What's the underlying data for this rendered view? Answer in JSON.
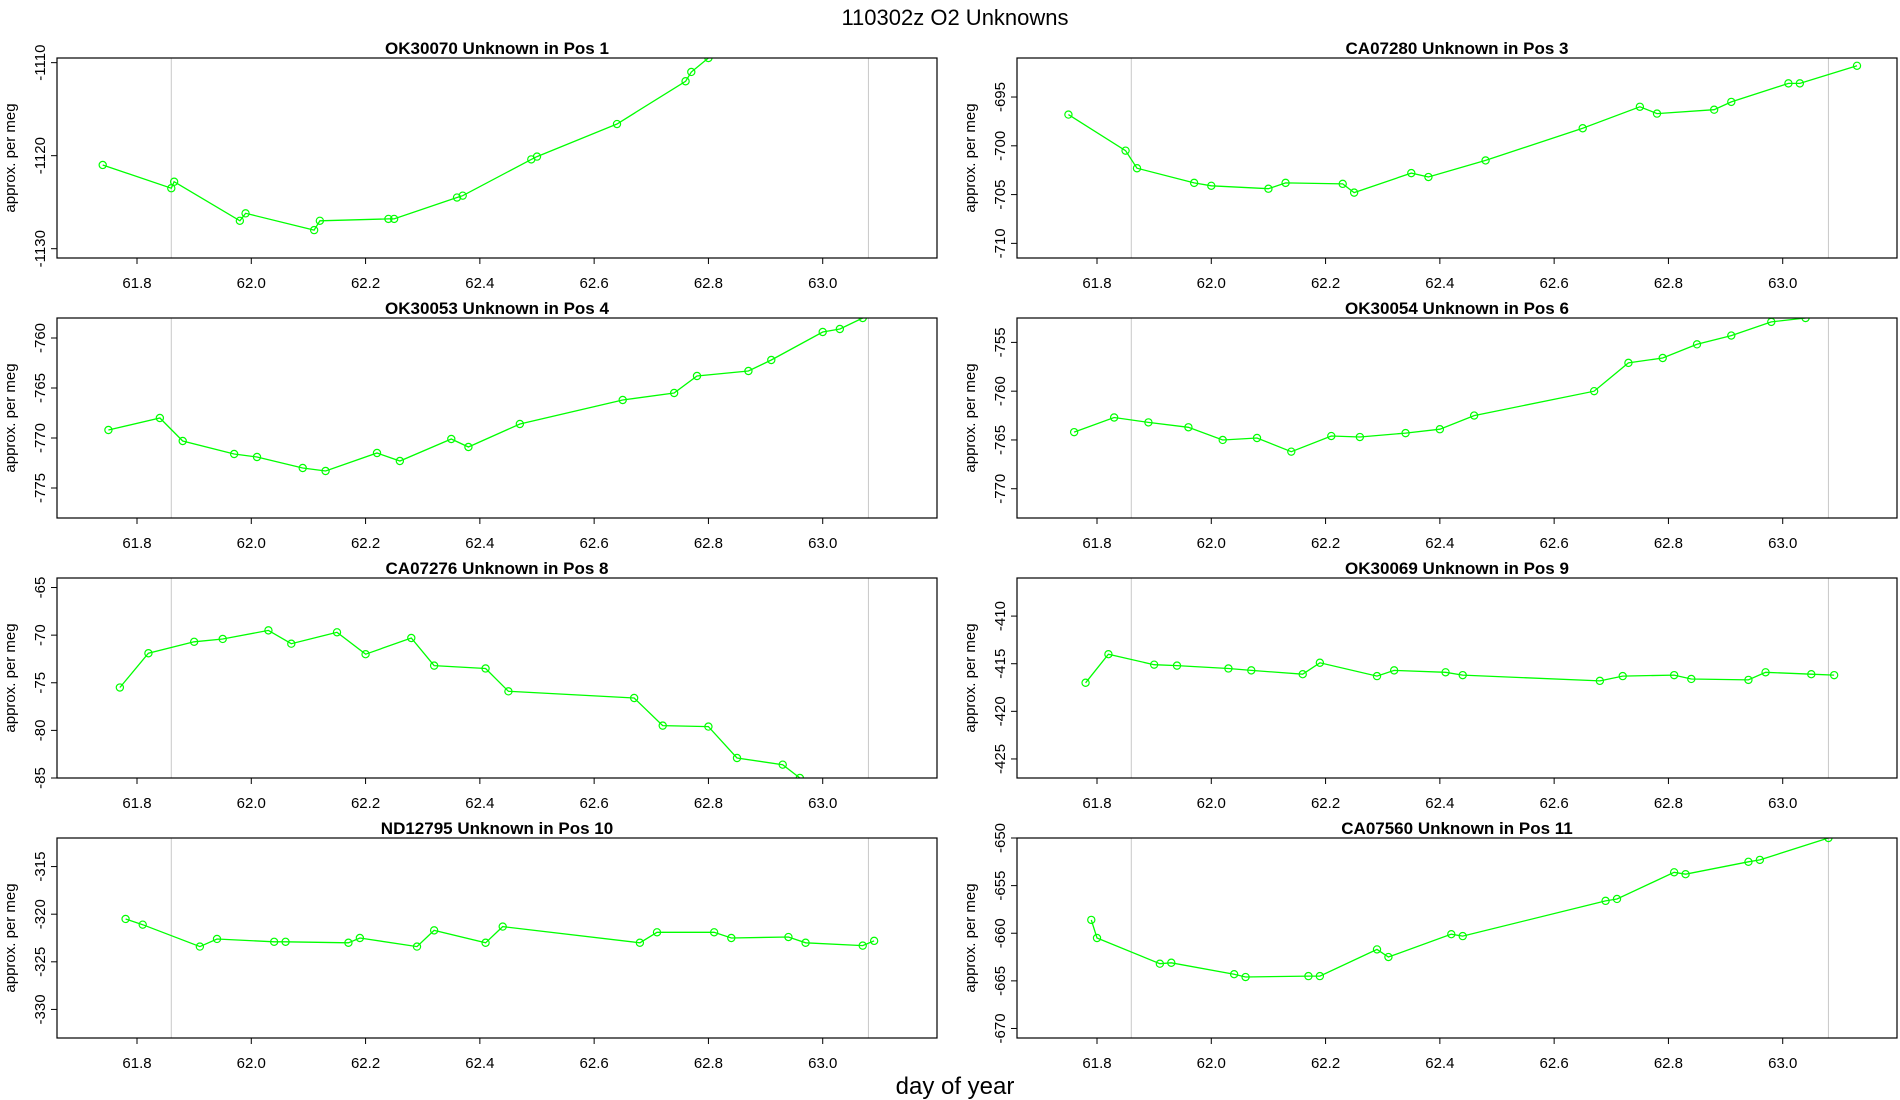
{
  "figure_title": "110302z  O2 Unknowns",
  "x_axis_label": "day of year",
  "y_axis_label": "approx. per meg",
  "reference_lines_x": [
    61.86,
    63.08
  ],
  "series_color": "#00ff00",
  "chart_data": [
    {
      "type": "line",
      "title": "OK30070    Unknown in Pos 1",
      "xlim": [
        61.66,
        63.2
      ],
      "ylim": [
        -1131,
        -1109.5
      ],
      "xticks": [
        "61.8",
        "62.0",
        "62.2",
        "62.4",
        "62.6",
        "62.8",
        "63.0"
      ],
      "yticks": [
        "-1110",
        "-1120",
        "-1130"
      ],
      "x": [
        61.74,
        61.86,
        61.865,
        61.98,
        61.99,
        62.11,
        62.12,
        62.24,
        62.25,
        62.36,
        62.37,
        62.49,
        62.5,
        62.64,
        62.76,
        62.77,
        62.8
      ],
      "y": [
        -1121,
        -1123.5,
        -1122.8,
        -1127,
        -1126.2,
        -1128,
        -1127,
        -1126.8,
        -1126.8,
        -1124.5,
        -1124.3,
        -1120.4,
        -1120.1,
        -1116.6,
        -1112,
        -1111,
        -1109.5
      ]
    },
    {
      "type": "line",
      "title": "CA07280    Unknown in Pos 3",
      "xlim": [
        61.66,
        63.2
      ],
      "ylim": [
        -711.5,
        -691
      ],
      "xticks": [
        "61.8",
        "62.0",
        "62.2",
        "62.4",
        "62.6",
        "62.8",
        "63.0"
      ],
      "yticks": [
        "-695",
        "-700",
        "-705",
        "-710"
      ],
      "x": [
        61.75,
        61.85,
        61.87,
        61.97,
        62.0,
        62.1,
        62.13,
        62.23,
        62.25,
        62.35,
        62.38,
        62.48,
        62.65,
        62.75,
        62.78,
        62.88,
        62.91,
        63.01,
        63.03,
        63.13
      ],
      "y": [
        -696.8,
        -700.5,
        -702.3,
        -703.8,
        -704.1,
        -704.4,
        -703.8,
        -703.9,
        -704.8,
        -702.8,
        -703.2,
        -701.5,
        -698.2,
        -696,
        -696.7,
        -696.3,
        -695.5,
        -693.6,
        -693.6,
        -691.8
      ]
    },
    {
      "type": "line",
      "title": "OK30053    Unknown in Pos 4",
      "xlim": [
        61.66,
        63.2
      ],
      "ylim": [
        -778,
        -758
      ],
      "xticks": [
        "61.8",
        "62.0",
        "62.2",
        "62.4",
        "62.6",
        "62.8",
        "63.0"
      ],
      "yticks": [
        "-760",
        "-765",
        "-770",
        "-775"
      ],
      "x": [
        61.75,
        61.84,
        61.88,
        61.97,
        62.01,
        62.09,
        62.13,
        62.22,
        62.26,
        62.35,
        62.38,
        62.47,
        62.65,
        62.74,
        62.78,
        62.87,
        62.91,
        63.0,
        63.03,
        63.07
      ],
      "y": [
        -769.2,
        -768,
        -770.3,
        -771.6,
        -771.9,
        -773,
        -773.3,
        -771.5,
        -772.3,
        -770.1,
        -770.9,
        -768.6,
        -766.2,
        -765.5,
        -763.8,
        -763.3,
        -762.2,
        -759.4,
        -759.1,
        -758
      ]
    },
    {
      "type": "line",
      "title": "OK30054    Unknown in Pos 6",
      "xlim": [
        61.66,
        63.2
      ],
      "ylim": [
        -773,
        -752.5
      ],
      "xticks": [
        "61.8",
        "62.0",
        "62.2",
        "62.4",
        "62.6",
        "62.8",
        "63.0"
      ],
      "yticks": [
        "-755",
        "-760",
        "-765",
        "-770"
      ],
      "x": [
        61.76,
        61.83,
        61.89,
        61.96,
        62.02,
        62.08,
        62.14,
        62.21,
        62.26,
        62.34,
        62.4,
        62.46,
        62.67,
        62.73,
        62.79,
        62.85,
        62.91,
        62.98,
        63.04
      ],
      "y": [
        -764.2,
        -762.7,
        -763.2,
        -763.7,
        -765,
        -764.8,
        -766.2,
        -764.6,
        -764.7,
        -764.3,
        -763.9,
        -762.5,
        -760,
        -757.1,
        -756.6,
        -755.2,
        -754.3,
        -752.9,
        -752.5
      ]
    },
    {
      "type": "line",
      "title": "CA07276    Unknown in Pos 8",
      "xlim": [
        61.66,
        63.2
      ],
      "ylim": [
        -85,
        -64
      ],
      "xticks": [
        "61.8",
        "62.0",
        "62.2",
        "62.4",
        "62.6",
        "62.8",
        "63.0"
      ],
      "yticks": [
        "-65",
        "-70",
        "-75",
        "-80",
        "-85"
      ],
      "x": [
        61.77,
        61.82,
        61.9,
        61.95,
        62.03,
        62.07,
        62.15,
        62.2,
        62.28,
        62.32,
        62.41,
        62.45,
        62.67,
        62.72,
        62.8,
        62.85,
        62.93,
        62.96
      ],
      "y": [
        -75.5,
        -71.9,
        -70.7,
        -70.4,
        -69.5,
        -70.9,
        -69.7,
        -72,
        -70.3,
        -73.2,
        -73.5,
        -75.9,
        -76.6,
        -79.5,
        -79.6,
        -82.9,
        -83.6,
        -85
      ]
    },
    {
      "type": "line",
      "title": "OK30069    Unknown in Pos 9",
      "xlim": [
        61.66,
        63.2
      ],
      "ylim": [
        -427,
        -406
      ],
      "xticks": [
        "61.8",
        "62.0",
        "62.2",
        "62.4",
        "62.6",
        "62.8",
        "63.0"
      ],
      "yticks": [
        "-410",
        "-415",
        "-420",
        "-425"
      ],
      "x": [
        61.78,
        61.82,
        61.9,
        61.94,
        62.03,
        62.07,
        62.16,
        62.19,
        62.29,
        62.32,
        62.41,
        62.44,
        62.68,
        62.72,
        62.81,
        62.84,
        62.94,
        62.97,
        63.05,
        63.09
      ],
      "y": [
        -417,
        -414,
        -415.1,
        -415.2,
        -415.5,
        -415.7,
        -416.1,
        -414.9,
        -416.3,
        -415.7,
        -415.9,
        -416.2,
        -416.8,
        -416.3,
        -416.2,
        -416.6,
        -416.7,
        -415.9,
        -416.1,
        -416.2
      ]
    },
    {
      "type": "line",
      "title": "ND12795    Unknown in Pos 10",
      "xlim": [
        61.66,
        63.2
      ],
      "ylim": [
        -333,
        -312
      ],
      "xticks": [
        "61.8",
        "62.0",
        "62.2",
        "62.4",
        "62.6",
        "62.8",
        "63.0"
      ],
      "yticks": [
        "-315",
        "-320",
        "-325",
        "-330"
      ],
      "x": [
        61.78,
        61.81,
        61.91,
        61.94,
        62.04,
        62.06,
        62.17,
        62.19,
        62.29,
        62.32,
        62.41,
        62.44,
        62.68,
        62.71,
        62.81,
        62.84,
        62.94,
        62.97,
        63.07,
        63.09
      ],
      "y": [
        -320.5,
        -321.1,
        -323.4,
        -322.6,
        -322.9,
        -322.9,
        -323,
        -322.5,
        -323.4,
        -321.7,
        -323,
        -321.3,
        -323,
        -321.9,
        -321.9,
        -322.5,
        -322.4,
        -323,
        -323.3,
        -322.8
      ]
    },
    {
      "type": "line",
      "title": "CA07560    Unknown in Pos 11",
      "xlim": [
        61.66,
        63.2
      ],
      "ylim": [
        -671,
        -650
      ],
      "xticks": [
        "61.8",
        "62.0",
        "62.2",
        "62.4",
        "62.6",
        "62.8",
        "63.0"
      ],
      "yticks": [
        "-650",
        "-655",
        "-660",
        "-665",
        "-670"
      ],
      "x": [
        61.79,
        61.8,
        61.91,
        61.93,
        62.04,
        62.06,
        62.17,
        62.19,
        62.29,
        62.31,
        62.42,
        62.44,
        62.69,
        62.71,
        62.81,
        62.83,
        62.94,
        62.96,
        63.08
      ],
      "y": [
        -658.6,
        -660.5,
        -663.2,
        -663.1,
        -664.3,
        -664.6,
        -664.5,
        -664.5,
        -661.7,
        -662.5,
        -660.1,
        -660.3,
        -656.6,
        -656.4,
        -653.6,
        -653.8,
        -652.5,
        -652.3,
        -650
      ]
    }
  ]
}
